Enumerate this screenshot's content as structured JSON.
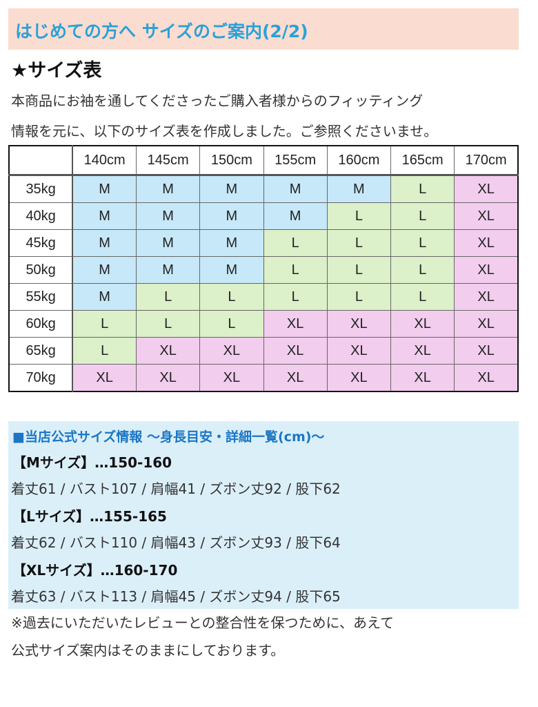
{
  "header": {
    "title": "はじめての方へ サイズのご案内(2/2)"
  },
  "section_title": "★サイズ表",
  "intro": [
    "本商品にお袖を通してくださったご購入者様からのフィッティング",
    "情報を元に、以下のサイズ表を作成しました。ご参照くださいませ。"
  ],
  "size_table": {
    "columns": [
      "140cm",
      "145cm",
      "150cm",
      "155cm",
      "160cm",
      "165cm",
      "170cm"
    ],
    "rows": [
      {
        "weight": "35kg",
        "sizes": [
          "M",
          "M",
          "M",
          "M",
          "M",
          "L",
          "XL"
        ]
      },
      {
        "weight": "40kg",
        "sizes": [
          "M",
          "M",
          "M",
          "M",
          "L",
          "L",
          "XL"
        ]
      },
      {
        "weight": "45kg",
        "sizes": [
          "M",
          "M",
          "M",
          "L",
          "L",
          "L",
          "XL"
        ]
      },
      {
        "weight": "50kg",
        "sizes": [
          "M",
          "M",
          "M",
          "L",
          "L",
          "L",
          "XL"
        ]
      },
      {
        "weight": "55kg",
        "sizes": [
          "M",
          "L",
          "L",
          "L",
          "L",
          "L",
          "XL"
        ]
      },
      {
        "weight": "60kg",
        "sizes": [
          "L",
          "L",
          "L",
          "XL",
          "XL",
          "XL",
          "XL"
        ]
      },
      {
        "weight": "65kg",
        "sizes": [
          "L",
          "XL",
          "XL",
          "XL",
          "XL",
          "XL",
          "XL"
        ]
      },
      {
        "weight": "70kg",
        "sizes": [
          "XL",
          "XL",
          "XL",
          "XL",
          "XL",
          "XL",
          "XL"
        ]
      }
    ],
    "colors": {
      "M": "#c6e8f8",
      "L": "#dcf0c9",
      "XL": "#f2cdee"
    }
  },
  "official": {
    "title": "■当店公式サイズ情報 〜身長目安・詳細一覧(cm)〜",
    "sizes": [
      {
        "label": "【Mサイズ】…150-160",
        "detail": "着丈61 / バスト107 / 肩幅41 / ズボン丈92 / 股下62"
      },
      {
        "label": "【Lサイズ】…155-165",
        "detail": "着丈62 / バスト110 / 肩幅43 / ズボン丈93 / 股下64"
      },
      {
        "label": "【XLサイズ】…160-170",
        "detail": "着丈63 / バスト113 / 肩幅45 / ズボン丈94 / 股下65"
      }
    ]
  },
  "note": [
    "※過去にいただいたレビューとの整合性を保つために、あえて",
    "公式サイズ案内はそのままにしております。"
  ]
}
